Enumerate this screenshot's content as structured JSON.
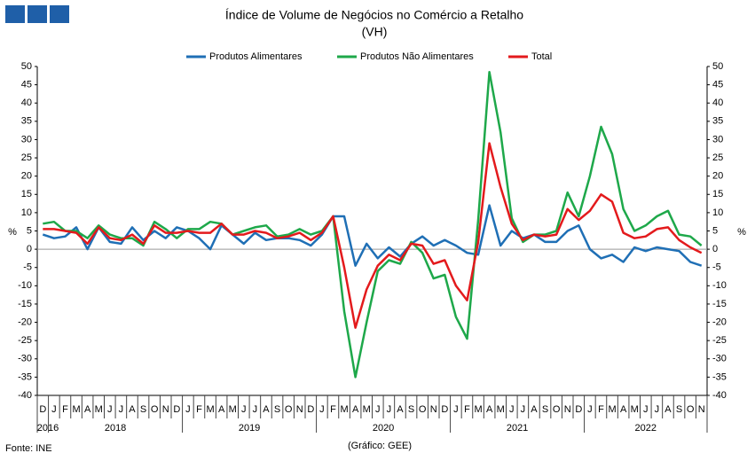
{
  "chart_data": {
    "type": "line",
    "title": "Índice de Volume de Negócios no Comércio a Retalho",
    "subtitle": "(VH)",
    "ylabel": "%",
    "y2label": "%",
    "source": "Fonte: INE",
    "credit": "(Gráfico: GEE)",
    "categories": [
      "D",
      "J",
      "F",
      "M",
      "A",
      "M",
      "J",
      "J",
      "A",
      "S",
      "O",
      "N",
      "D",
      "J",
      "F",
      "M",
      "A",
      "M",
      "J",
      "J",
      "A",
      "S",
      "O",
      "N",
      "D",
      "J",
      "F",
      "M",
      "A",
      "M",
      "J",
      "J",
      "A",
      "S",
      "O",
      "N",
      "D",
      "J",
      "F",
      "M",
      "A",
      "M",
      "J",
      "J",
      "A",
      "S",
      "O",
      "N",
      "D",
      "J",
      "F",
      "M",
      "A",
      "M",
      "J",
      "J",
      "A",
      "S",
      "O",
      "N"
    ],
    "year_labels": [
      "2016",
      "2018",
      null,
      null,
      null,
      null,
      null,
      null,
      null,
      null,
      null,
      null,
      null,
      "2019",
      null,
      null,
      null,
      null,
      null,
      null,
      null,
      null,
      null,
      null,
      null,
      "2020",
      null,
      null,
      null,
      null,
      null,
      null,
      null,
      null,
      null,
      null,
      null,
      "2021",
      null,
      null,
      null,
      null,
      null,
      null,
      null,
      null,
      null,
      null,
      null,
      "2022",
      null,
      null,
      null,
      null,
      null,
      null,
      null,
      null,
      null,
      null
    ],
    "series": [
      {
        "name": "Produtos Alimentares",
        "color": "#1f6fb5",
        "values": [
          4,
          3,
          3.5,
          6,
          0,
          6,
          2,
          1.5,
          6,
          2.5,
          5,
          3,
          6,
          5,
          3,
          0,
          6.5,
          4,
          1.5,
          4.5,
          2.5,
          3,
          3,
          2.5,
          1,
          4,
          9,
          9,
          -4.5,
          1.5,
          -2.5,
          0.5,
          -2,
          1.5,
          3.5,
          1,
          2.5,
          1,
          -1,
          -1.5,
          12,
          1,
          5,
          3,
          4,
          2,
          2,
          5,
          6.5,
          0,
          -2.5,
          -1.5,
          -3.5,
          0.5,
          -0.5,
          0.5,
          0,
          -0.5,
          -3.5,
          -4.5
        ]
      },
      {
        "name": "Produtos Não Alimentares",
        "color": "#1ea84a",
        "values": [
          7,
          7.5,
          5,
          5,
          3,
          6.5,
          4,
          3,
          3,
          1,
          7.5,
          5.5,
          3,
          5.5,
          5.5,
          7.5,
          7,
          4,
          5,
          6,
          6.5,
          3.5,
          4,
          5.5,
          4,
          5,
          9,
          -17,
          -35,
          -20,
          -6,
          -3,
          -4,
          2,
          -1,
          -8,
          -7,
          -18.5,
          -24.5,
          8,
          48.5,
          32,
          8.5,
          2,
          4,
          4,
          5,
          15.5,
          9,
          20,
          33.5,
          26,
          11,
          5,
          6.5,
          9,
          10.5,
          4,
          3.5,
          1
        ]
      },
      {
        "name": "Total",
        "color": "#e31a1c",
        "values": [
          5.5,
          5.5,
          5,
          4.5,
          1.5,
          6,
          3,
          2.5,
          4,
          1.5,
          6.5,
          4.5,
          4.5,
          5,
          4.5,
          4.5,
          7,
          4,
          4,
          5,
          4.5,
          3,
          3.5,
          4.5,
          2.5,
          4.5,
          9,
          -5,
          -21.5,
          -11,
          -4.5,
          -1.5,
          -3,
          1.5,
          1,
          -4,
          -3,
          -10,
          -14,
          2,
          29,
          17,
          7,
          2.5,
          4,
          3.5,
          4,
          11,
          8,
          10.5,
          15,
          13,
          4.5,
          3,
          3.5,
          5.5,
          6,
          2.5,
          0.5,
          -1
        ]
      }
    ],
    "ylim": [
      -40,
      50
    ],
    "yticks": [
      -40,
      -35,
      -30,
      -25,
      -20,
      -15,
      -10,
      -5,
      0,
      5,
      10,
      15,
      20,
      25,
      30,
      35,
      40,
      45,
      50
    ],
    "y2lim": [
      -40,
      50
    ],
    "y2ticks": [
      -40,
      -35,
      -30,
      -25,
      -20,
      -15,
      -10,
      -5,
      0,
      5,
      10,
      15,
      20,
      25,
      30,
      35,
      40,
      45,
      50
    ],
    "grid": false,
    "legend": "top"
  }
}
